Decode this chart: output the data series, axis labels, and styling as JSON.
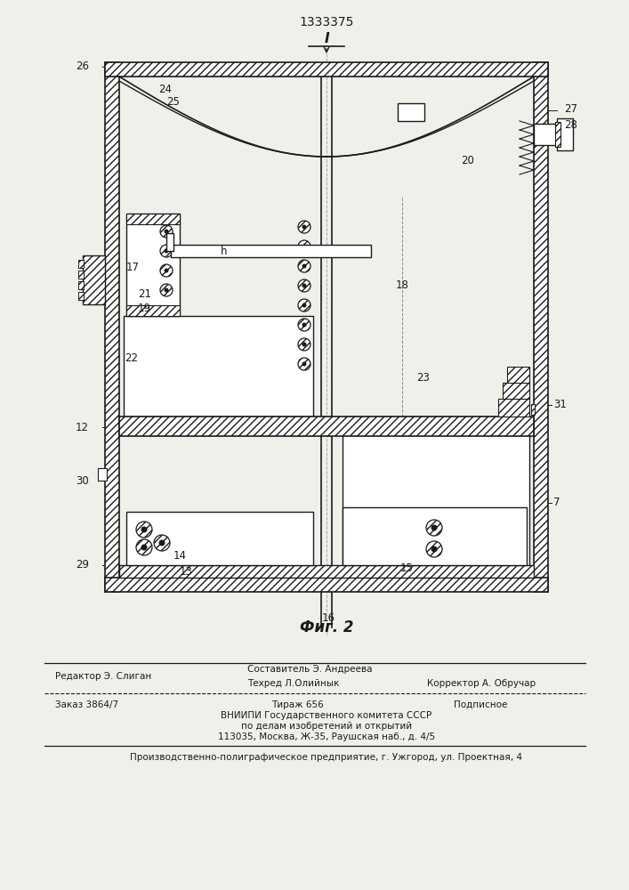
{
  "patent_number": "1333375",
  "fig_label": "Фиг. 2",
  "bg_color": "#f0f0eb",
  "lc": "#1a1a1a",
  "footer_line1_left": "Редактор Э. Слиган",
  "footer_line1_c1": "Составитель Э. Андреева",
  "footer_line2_c1": "Техред Л.Олийнык",
  "footer_line2_c2": "Корректор А. Обручар",
  "footer_line3_left": "Заказ 3864/7",
  "footer_line3_c": "Тираж 656",
  "footer_line3_right": "Подписное",
  "footer_line4": "ВНИИПИ Государственного комитета СССР",
  "footer_line5": "по делам изобретений и открытий",
  "footer_line6": "113035, Москва, Ж-35, Раушская наб., д. 4/5",
  "footer_line7": "Производственно-полиграфическое предприятие, г. Ужгород, ул. Проектная, 4"
}
